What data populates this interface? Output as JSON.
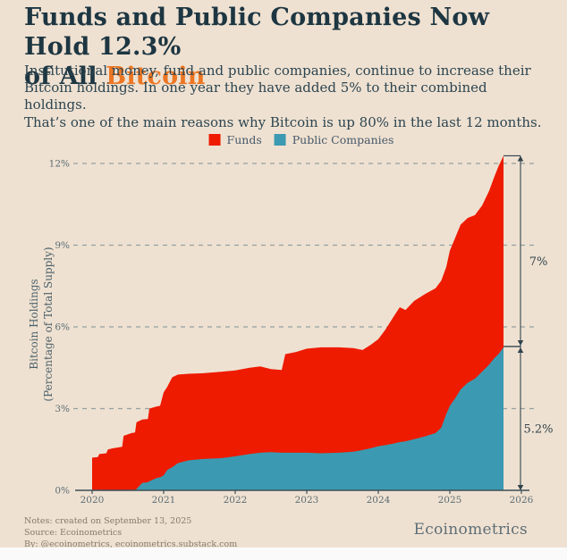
{
  "header": {
    "title_line1": "Funds and Public Companies Now Hold 12.3%",
    "title_line2_prefix": "of All ",
    "title_line2_highlight": "Bitcoin",
    "subtitle_lines": [
      "Institutional money, fund and public companies, continue to increase their",
      "Bitcoin holdings. In one year they have added 5% to their combined holdings.",
      "That’s one of the main reasons why Bitcoin is up 80% in the last 12 months."
    ]
  },
  "legend": {
    "items": [
      {
        "label": "Funds",
        "color": "#ee1b00"
      },
      {
        "label": "Public Companies",
        "color": "#3b9ab1"
      }
    ]
  },
  "chart_data": {
    "type": "area",
    "stacked": true,
    "title": "Funds and Public Companies Now Hold 12.3% of All Bitcoin",
    "ylabel_lines": [
      "Bitcoin Holdings",
      "(Percentage of Total Supply)"
    ],
    "xlabel": "",
    "ylim": [
      0,
      12.8
    ],
    "xlim": [
      2019.8,
      2026.1
    ],
    "grid": "horizontal-dashed",
    "legend_position": "top-center",
    "yticks": [
      {
        "v": 0,
        "label": "0%"
      },
      {
        "v": 3,
        "label": "3%"
      },
      {
        "v": 6,
        "label": "6%"
      },
      {
        "v": 9,
        "label": "9%"
      },
      {
        "v": 12,
        "label": "12%"
      }
    ],
    "xticks": [
      {
        "v": 2020,
        "label": "2020"
      },
      {
        "v": 2021,
        "label": "2021"
      },
      {
        "v": 2022,
        "label": "2022"
      },
      {
        "v": 2023,
        "label": "2023"
      },
      {
        "v": 2024,
        "label": "2024"
      },
      {
        "v": 2025,
        "label": "2025"
      },
      {
        "v": 2026,
        "label": "2026"
      }
    ],
    "x": [
      2020.0,
      2020.08,
      2020.1,
      2020.2,
      2020.22,
      2020.3,
      2020.42,
      2020.44,
      2020.55,
      2020.6,
      2020.62,
      2020.7,
      2020.78,
      2020.8,
      2020.9,
      2020.95,
      2021.0,
      2021.05,
      2021.12,
      2021.2,
      2021.35,
      2021.55,
      2021.8,
      2022.0,
      2022.2,
      2022.35,
      2022.5,
      2022.65,
      2022.7,
      2022.85,
      2023.0,
      2023.2,
      2023.45,
      2023.65,
      2023.78,
      2023.9,
      2024.0,
      2024.1,
      2024.22,
      2024.3,
      2024.38,
      2024.5,
      2024.65,
      2024.8,
      2024.88,
      2024.95,
      2025.0,
      2025.08,
      2025.15,
      2025.25,
      2025.35,
      2025.45,
      2025.55,
      2025.62,
      2025.68,
      2025.75
    ],
    "series": [
      {
        "name": "Public Companies",
        "color": "#3b9ab1",
        "values": [
          0,
          0,
          0,
          0,
          0,
          0,
          0,
          0,
          0,
          0.02,
          0.05,
          0.27,
          0.3,
          0.33,
          0.45,
          0.48,
          0.55,
          0.75,
          0.85,
          1.0,
          1.1,
          1.15,
          1.18,
          1.25,
          1.33,
          1.38,
          1.4,
          1.38,
          1.38,
          1.38,
          1.38,
          1.36,
          1.38,
          1.42,
          1.48,
          1.55,
          1.62,
          1.66,
          1.72,
          1.77,
          1.8,
          1.88,
          1.98,
          2.1,
          2.3,
          2.8,
          3.1,
          3.4,
          3.7,
          3.95,
          4.1,
          4.35,
          4.62,
          4.85,
          5.0,
          5.25
        ]
      },
      {
        "name": "Funds",
        "color": "#ee1b00",
        "values": [
          1.2,
          1.22,
          1.33,
          1.36,
          1.5,
          1.55,
          1.6,
          2.0,
          2.1,
          2.1,
          2.45,
          2.33,
          2.32,
          2.67,
          2.63,
          2.62,
          3.05,
          3.05,
          3.3,
          3.25,
          3.18,
          3.15,
          3.17,
          3.15,
          3.17,
          3.17,
          3.05,
          3.04,
          3.62,
          3.7,
          3.82,
          3.89,
          3.87,
          3.8,
          3.67,
          3.8,
          3.93,
          4.24,
          4.68,
          4.95,
          4.82,
          5.07,
          5.22,
          5.32,
          5.4,
          5.4,
          5.7,
          5.9,
          6.05,
          6.05,
          6.0,
          6.1,
          6.38,
          6.65,
          6.9,
          7.03
        ]
      }
    ],
    "end_values": {
      "total_pct": 12.3,
      "funds_pct": 7.0,
      "public_pct": 5.2
    },
    "annotations": [
      {
        "label": "7%",
        "from_pct": 5.28,
        "to_pct": 12.28
      },
      {
        "label": "5.2%",
        "from_pct": 0,
        "to_pct": 5.28
      }
    ]
  },
  "footer": {
    "notes_lines": [
      "Notes: created on September 13, 2025",
      "Source: Ecoinometrics",
      "By: @ecoinometrics, ecoinometrics.substack.com"
    ],
    "brand": "Ecoinometrics"
  },
  "colors": {
    "background": "#efe1d1",
    "title": "#1d3642",
    "accent_orange": "#ec7623",
    "body_text": "#2c4551",
    "funds_red": "#ee1b00",
    "public_teal": "#3b9ab1",
    "grid": "#95a1a1",
    "axis": "#3c4f58",
    "axis_text": "#5a6c74",
    "annotation": "#31434c",
    "notes_text": "#84796b",
    "brand_text": "#5d6e77"
  }
}
